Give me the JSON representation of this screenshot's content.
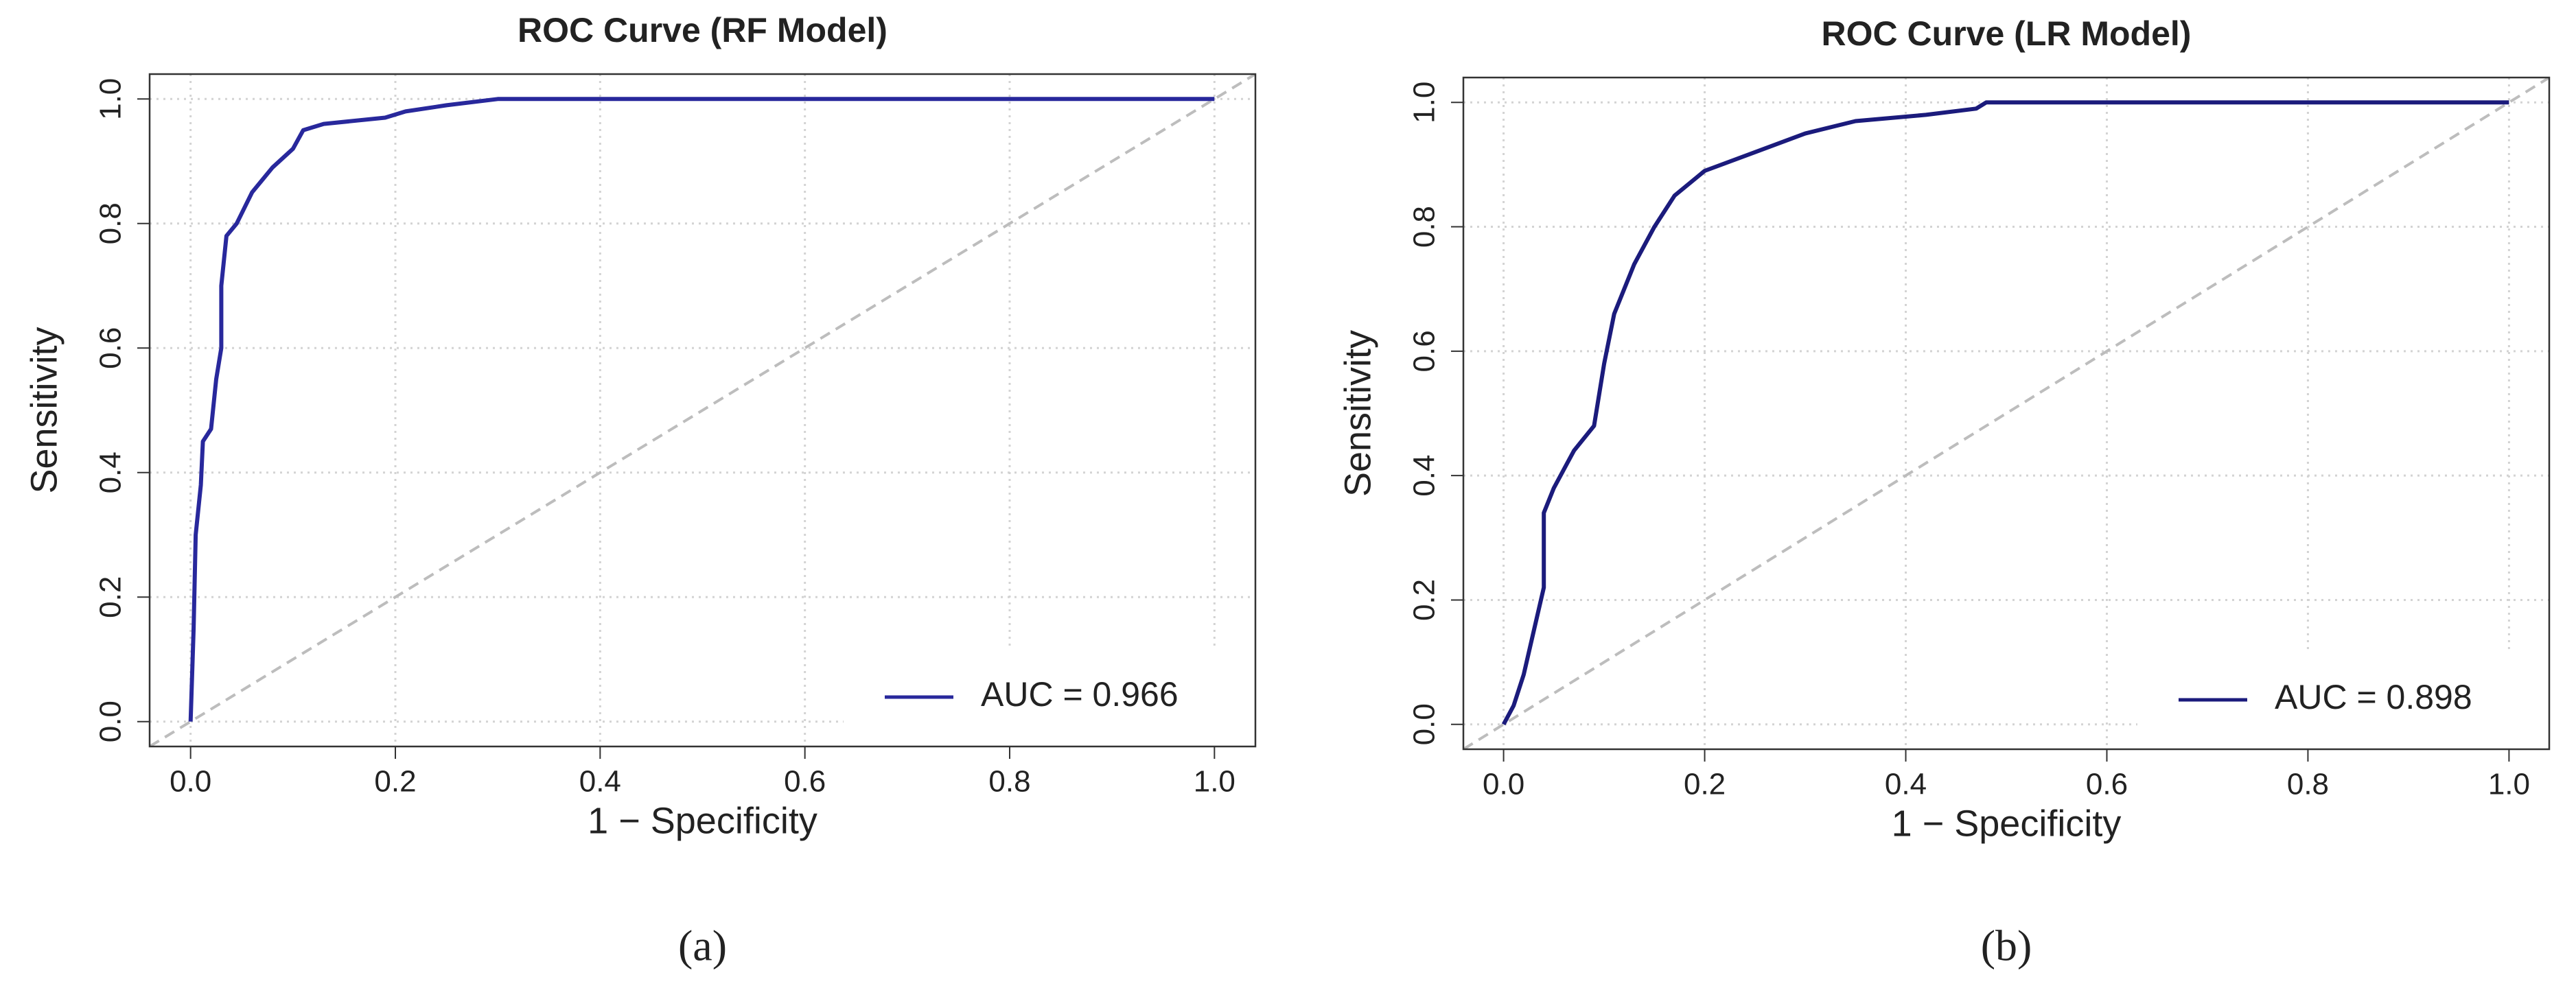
{
  "chart_data": [
    {
      "type": "line",
      "title": "ROC Curve (RF Model)",
      "x_label": "1 − Specificity",
      "y_label": "Sensitivity",
      "caption": "(a)",
      "series": [
        {
          "name": "AUC = 0.966",
          "color": "#28289c",
          "x": [
            0,
            0.003,
            0.005,
            0.01,
            0.012,
            0.02,
            0.025,
            0.03,
            0.03,
            0.035,
            0.045,
            0.06,
            0.08,
            0.1,
            0.11,
            0.13,
            0.19,
            0.21,
            0.25,
            0.3,
            1
          ],
          "values": [
            0,
            0.15,
            0.3,
            0.38,
            0.45,
            0.47,
            0.55,
            0.6,
            0.7,
            0.78,
            0.8,
            0.85,
            0.89,
            0.92,
            0.95,
            0.96,
            0.97,
            0.98,
            0.99,
            1,
            1
          ]
        }
      ],
      "xlim": [
        -0.04,
        1.04
      ],
      "ylim": [
        -0.04,
        1.04
      ],
      "xticks": [
        {
          "value": 0,
          "label": "0.0"
        },
        0.2,
        0.4,
        0.6,
        0.8,
        {
          "value": 1,
          "label": "1.0"
        }
      ],
      "yticks": [
        {
          "value": 0,
          "label": "0.0"
        },
        0.2,
        0.4,
        0.6,
        0.8,
        {
          "value": 1,
          "label": "1.0"
        }
      ],
      "grid": true,
      "legend": "bottom-right"
    },
    {
      "type": "line",
      "title": "ROC Curve (LR Model)",
      "x_label": "1 − Specificity",
      "y_label": "Sensitivity",
      "caption": "(b)",
      "series": [
        {
          "name": "AUC = 0.898",
          "color": "#1b1b7c",
          "x": [
            0,
            0.01,
            0.02,
            0.03,
            0.04,
            0.04,
            0.05,
            0.07,
            0.09,
            0.1,
            0.11,
            0.13,
            0.15,
            0.17,
            0.2,
            0.25,
            0.3,
            0.35,
            0.42,
            0.47,
            0.48,
            1
          ],
          "values": [
            0,
            0.03,
            0.08,
            0.15,
            0.22,
            0.34,
            0.38,
            0.44,
            0.48,
            0.58,
            0.66,
            0.74,
            0.8,
            0.85,
            0.89,
            0.92,
            0.95,
            0.97,
            0.98,
            0.99,
            1,
            1
          ]
        }
      ],
      "xlim": [
        -0.04,
        1.04
      ],
      "ylim": [
        -0.04,
        1.04
      ],
      "xticks": [
        {
          "value": 0,
          "label": "0.0"
        },
        0.2,
        0.4,
        0.6,
        0.8,
        {
          "value": 1,
          "label": "1.0"
        }
      ],
      "yticks": [
        {
          "value": 0,
          "label": "0.0"
        },
        0.2,
        0.4,
        0.6,
        0.8,
        {
          "value": 1,
          "label": "1.0"
        }
      ],
      "grid": true,
      "legend": "bottom-right"
    }
  ]
}
